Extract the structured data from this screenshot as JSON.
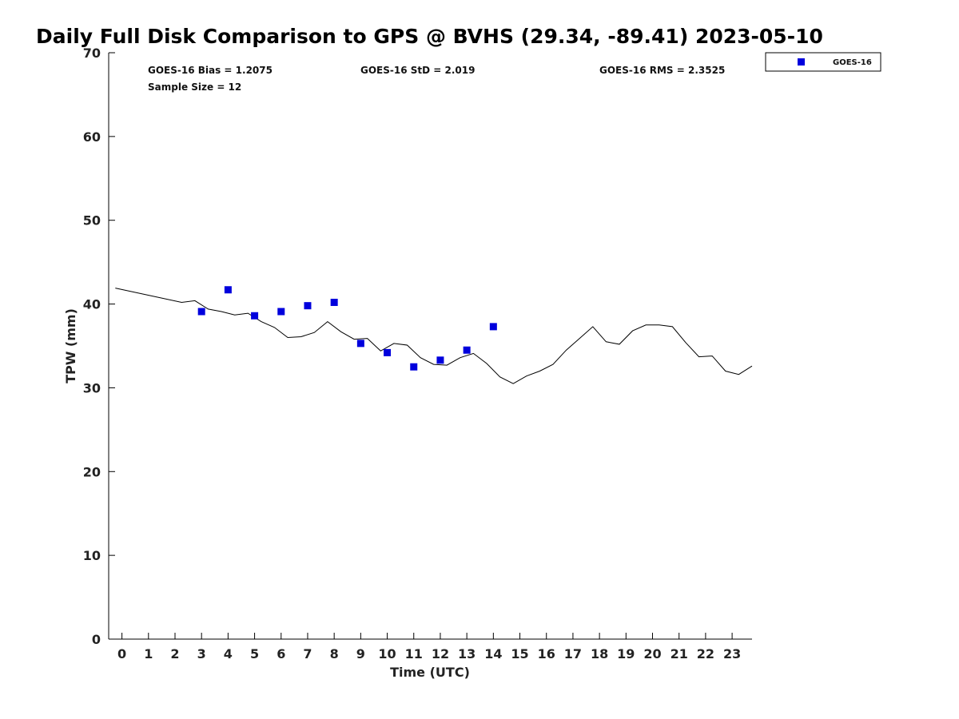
{
  "title": "Daily Full Disk Comparison to GPS @ BVHS (29.34, -89.41) 2023-05-10",
  "stats": {
    "bias": "GOES-16 Bias = 1.2075",
    "sample_size": "Sample Size = 12",
    "std": "GOES-16 StD = 2.019",
    "rms": "GOES-16 RMS = 2.3525"
  },
  "legend": {
    "label": "GOES-16"
  },
  "colors": {
    "goes": "#0000dd",
    "gps": "#000000",
    "axis": "#000000"
  },
  "chart_data": {
    "type": "scatter",
    "title": "Daily Full Disk Comparison to GPS @ BVHS (29.34, -89.41) 2023-05-10",
    "xlabel": "Time (UTC)",
    "ylabel": "TPW (mm)",
    "xlim": [
      -0.5,
      23.75
    ],
    "ylim": [
      0,
      70
    ],
    "x_ticks": [
      "0",
      "1",
      "2",
      "3",
      "4",
      "5",
      "6",
      "7",
      "8",
      "9",
      "10",
      "11",
      "12",
      "13",
      "14",
      "15",
      "16",
      "17",
      "18",
      "19",
      "20",
      "21",
      "22",
      "23"
    ],
    "y_ticks": [
      "0",
      "10",
      "20",
      "30",
      "40",
      "50",
      "60",
      "70"
    ],
    "grid": false,
    "legend_position": "top-right",
    "series": [
      {
        "name": "GOES-16",
        "kind": "scatter",
        "x": [
          3,
          4,
          5,
          6,
          7,
          8,
          9,
          10,
          11,
          12,
          13,
          14
        ],
        "y": [
          39.1,
          41.7,
          38.6,
          39.1,
          39.8,
          40.2,
          35.3,
          34.2,
          32.5,
          33.3,
          34.5,
          37.3
        ]
      },
      {
        "kind": "line",
        "x": [
          -0.25,
          2.25,
          2.75,
          3.25,
          3.75,
          4.25,
          4.75,
          5.25,
          5.75,
          6.25,
          6.75,
          7.25,
          7.75,
          8.25,
          8.75,
          9.25,
          9.75,
          10.25,
          10.75,
          11.25,
          11.75,
          12.25,
          12.75,
          13.25,
          13.75,
          14.25,
          14.75,
          15.25,
          15.75,
          16.25,
          16.75,
          17.25,
          17.75,
          18.25,
          18.75,
          19.25,
          19.75,
          20.25,
          20.75,
          21.25,
          21.75,
          22.25,
          22.75,
          23.25,
          23.75
        ],
        "y": [
          41.9,
          40.2,
          40.4,
          39.4,
          39.1,
          38.7,
          38.9,
          37.9,
          37.2,
          36.0,
          36.1,
          36.6,
          37.9,
          36.7,
          35.8,
          35.9,
          34.4,
          35.3,
          35.1,
          33.6,
          32.8,
          32.7,
          33.6,
          34.1,
          32.9,
          31.3,
          30.5,
          31.4,
          32.0,
          32.8,
          34.5,
          35.9,
          37.3,
          35.5,
          35.2,
          36.8,
          37.5,
          37.5,
          37.3,
          35.4,
          33.7,
          33.8,
          32.0,
          31.6,
          32.6
        ]
      }
    ]
  }
}
